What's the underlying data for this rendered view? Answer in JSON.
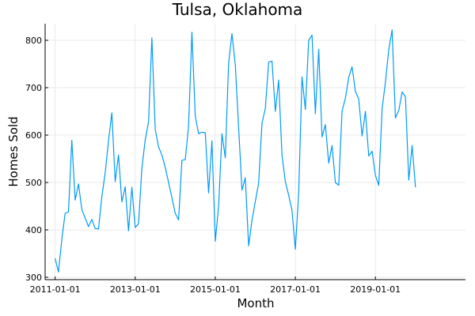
{
  "chart_data": {
    "type": "line",
    "title": "Tulsa, Oklahoma",
    "xlabel": "Month",
    "ylabel": "Homes Sold",
    "x_start": "2011-01",
    "x_end": "2020-11",
    "xlim": [
      "2010-10",
      "2021-04"
    ],
    "ylim": [
      295,
      835
    ],
    "xticks": [
      {
        "date": "2011-01",
        "label": "2011-01-01"
      },
      {
        "date": "2013-01",
        "label": "2013-01-01"
      },
      {
        "date": "2015-01",
        "label": "2015-01-01"
      },
      {
        "date": "2017-01",
        "label": "2017-01-01"
      },
      {
        "date": "2019-01",
        "label": "2019-01-01"
      }
    ],
    "yticks": [
      300,
      400,
      500,
      600,
      700,
      800
    ],
    "grid": true,
    "legend": "none",
    "series": [
      {
        "color": "#009AF9",
        "values": [
          340,
          311,
          380,
          435,
          438,
          589,
          463,
          497,
          443,
          425,
          407,
          422,
          403,
          402,
          470,
          520,
          588,
          647,
          502,
          558,
          459,
          491,
          398,
          490,
          405,
          413,
          530,
          590,
          628,
          805,
          612,
          575,
          558,
          532,
          500,
          468,
          435,
          421,
          547,
          548,
          620,
          817,
          640,
          603,
          606,
          605,
          478,
          588,
          376,
          450,
          603,
          552,
          752,
          814,
          748,
          616,
          484,
          510,
          366,
          420,
          460,
          499,
          625,
          656,
          754,
          756,
          650,
          716,
          557,
          502,
          473,
          441,
          359,
          478,
          723,
          654,
          800,
          811,
          645,
          781,
          596,
          622,
          541,
          578,
          500,
          494,
          651,
          678,
          722,
          744,
          692,
          676,
          598,
          650,
          556,
          566,
          515,
          494,
          655,
          712,
          780,
          822,
          636,
          652,
          691,
          681,
          505,
          578,
          490
        ]
      }
    ]
  }
}
